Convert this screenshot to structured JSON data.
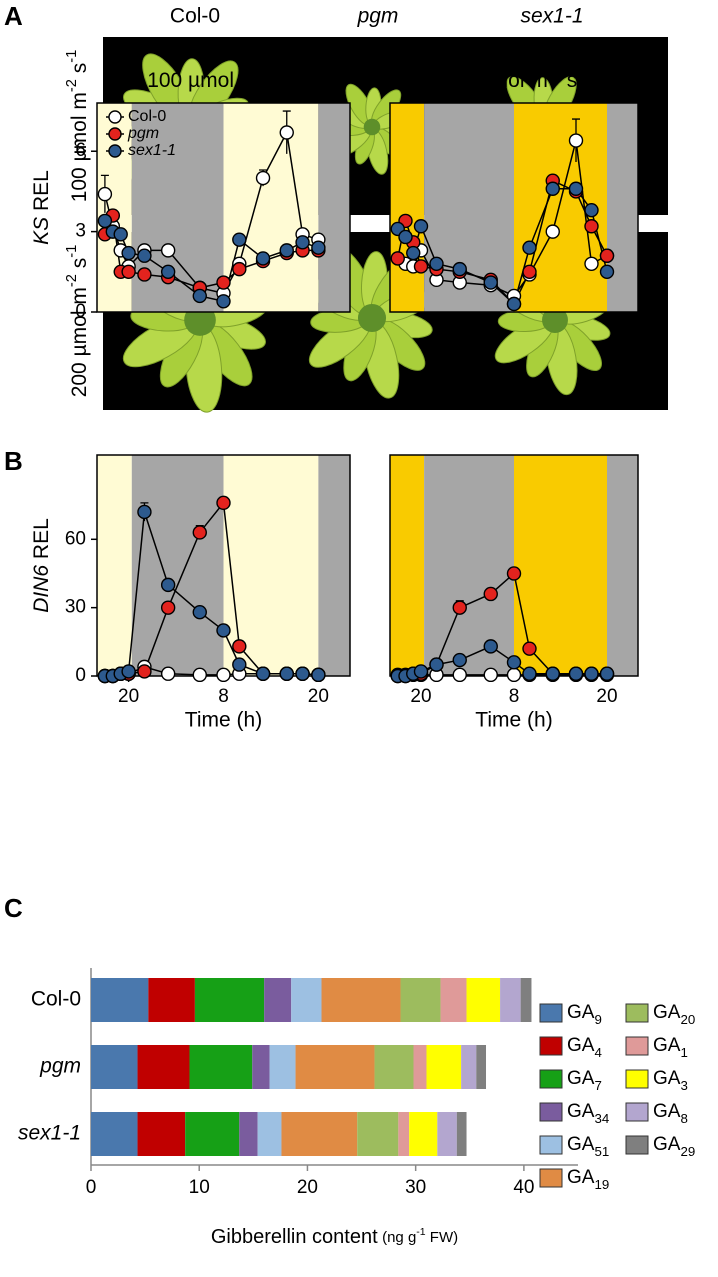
{
  "panel_labels": [
    "A",
    "B",
    "C"
  ],
  "panel_a": {
    "columns": [
      "Col-0",
      "pgm",
      "sex1-1"
    ],
    "rows": [
      "100 µmol m-2 s-1",
      "200 µmol m-2 s-1"
    ]
  },
  "chart_data": [
    {
      "type": "line",
      "title": "100 µmol m-2 s-1",
      "ylabel": "KS REL",
      "x": [
        17,
        18,
        19,
        20,
        22,
        25,
        29,
        32,
        34,
        37,
        40,
        42,
        44
      ],
      "xlim": [
        16,
        48
      ],
      "ylim": [
        0,
        7.8
      ],
      "yticks": [
        0,
        3,
        6
      ],
      "periods": [
        {
          "start": 16,
          "end": 20.4,
          "color": "#fffbd4"
        },
        {
          "start": 20.4,
          "end": 32,
          "color": "#a6a6a6"
        },
        {
          "start": 32,
          "end": 44,
          "color": "#fffbd4"
        },
        {
          "start": 44,
          "end": 48,
          "color": "#a6a6a6"
        }
      ],
      "legend": "upper left",
      "series": [
        {
          "name": "Col-0",
          "color": "#ffffff",
          "values": [
            4.4,
            3.2,
            2.3,
            1.7,
            2.3,
            2.3,
            0.9,
            0.7,
            1.8,
            5.0,
            6.7,
            2.9,
            2.7
          ],
          "errors": [
            0.7,
            null,
            null,
            null,
            null,
            null,
            null,
            null,
            null,
            0.3,
            0.8,
            null,
            null
          ]
        },
        {
          "name": "pgm",
          "color": "#e3231e",
          "values": [
            2.9,
            3.6,
            1.5,
            1.5,
            1.4,
            1.3,
            0.9,
            1.1,
            1.6,
            1.9,
            2.2,
            2.3,
            2.3
          ]
        },
        {
          "name": "sex1-1",
          "color": "#2d5a8e",
          "values": [
            3.4,
            3.0,
            2.9,
            2.2,
            2.1,
            1.5,
            0.6,
            0.4,
            2.7,
            2.0,
            2.3,
            2.6,
            2.4
          ]
        }
      ]
    },
    {
      "type": "line",
      "title": "200 µmol m-2 s-1",
      "x": [
        17,
        18,
        19,
        20,
        22,
        25,
        29,
        32,
        34,
        37,
        40,
        42,
        44
      ],
      "xlim": [
        16,
        48
      ],
      "ylim": [
        0,
        7.8
      ],
      "periods": [
        {
          "start": 16,
          "end": 20.4,
          "color": "#f9cb00"
        },
        {
          "start": 20.4,
          "end": 32,
          "color": "#a6a6a6"
        },
        {
          "start": 32,
          "end": 44,
          "color": "#f9cb00"
        },
        {
          "start": 44,
          "end": 48,
          "color": "#a6a6a6"
        }
      ],
      "series": [
        {
          "color": "#ffffff",
          "values": [
            2.0,
            1.8,
            1.7,
            2.3,
            1.2,
            1.1,
            1.0,
            0.6,
            1.4,
            3.0,
            6.4,
            1.8,
            2.1
          ],
          "errors": [
            null,
            null,
            null,
            null,
            null,
            null,
            null,
            null,
            null,
            null,
            0.8,
            null,
            null
          ]
        },
        {
          "color": "#e3231e",
          "values": [
            2.0,
            3.4,
            2.6,
            1.7,
            1.6,
            1.5,
            1.2,
            0.3,
            1.5,
            4.9,
            4.5,
            3.2,
            2.1
          ]
        },
        {
          "color": "#2d5a8e",
          "values": [
            3.1,
            2.8,
            2.2,
            3.2,
            1.8,
            1.6,
            1.1,
            0.3,
            2.4,
            4.6,
            4.6,
            3.8,
            1.5
          ]
        }
      ]
    },
    {
      "type": "line",
      "ylabel": "DIN6 REL",
      "x": [
        17,
        18,
        19,
        20,
        22,
        25,
        29,
        32,
        34,
        37,
        40,
        42,
        44
      ],
      "xlim": [
        16,
        48
      ],
      "ylim": [
        0,
        97
      ],
      "yticks": [
        0,
        30,
        60
      ],
      "xticks": [
        20,
        {
          "value": 32,
          "label": "8"
        },
        {
          "value": 44,
          "label": "20"
        }
      ],
      "xlabel": "Time (h)",
      "periods": [
        {
          "start": 16,
          "end": 20.4,
          "color": "#fffbd4"
        },
        {
          "start": 20.4,
          "end": 32,
          "color": "#a6a6a6"
        },
        {
          "start": 32,
          "end": 44,
          "color": "#fffbd4"
        },
        {
          "start": 44,
          "end": 48,
          "color": "#a6a6a6"
        }
      ],
      "series": [
        {
          "color": "#ffffff",
          "values": [
            0,
            0,
            1,
            1,
            4,
            1,
            0.5,
            0.5,
            1,
            1,
            1,
            1,
            0.5
          ]
        },
        {
          "color": "#e3231e",
          "values": [
            0,
            0,
            1,
            1,
            2,
            30,
            63,
            76,
            13,
            1,
            1,
            1,
            0.5
          ],
          "errors": [
            null,
            null,
            null,
            null,
            null,
            null,
            3,
            2,
            null,
            null,
            null,
            null,
            null
          ]
        },
        {
          "color": "#2d5a8e",
          "values": [
            0,
            0,
            1,
            2,
            72,
            40,
            28,
            20,
            5,
            1,
            1,
            1,
            0.5
          ],
          "errors": [
            null,
            null,
            null,
            null,
            4,
            null,
            null,
            null,
            null,
            null,
            null,
            null,
            null
          ]
        }
      ]
    },
    {
      "type": "line",
      "x": [
        17,
        18,
        19,
        20,
        22,
        25,
        29,
        32,
        34,
        37,
        40,
        42,
        44
      ],
      "xlim": [
        16,
        48
      ],
      "ylim": [
        0,
        97
      ],
      "xticks": [
        20,
        {
          "value": 32,
          "label": "8"
        },
        {
          "value": 44,
          "label": "20"
        }
      ],
      "xlabel": "Time (h)",
      "periods": [
        {
          "start": 16,
          "end": 20.4,
          "color": "#f9cb00"
        },
        {
          "start": 20.4,
          "end": 32,
          "color": "#a6a6a6"
        },
        {
          "start": 32,
          "end": 44,
          "color": "#f9cb00"
        },
        {
          "start": 44,
          "end": 48,
          "color": "#a6a6a6"
        }
      ],
      "series": [
        {
          "color": "#ffffff",
          "values": [
            0.5,
            0.5,
            0.5,
            0.5,
            0.5,
            0.5,
            0.5,
            0.5,
            0.5,
            0.5,
            0.5,
            0.5,
            0.5
          ]
        },
        {
          "color": "#e3231e",
          "values": [
            0,
            0,
            1,
            1,
            5,
            30,
            36,
            45,
            12,
            1,
            1,
            1,
            1
          ],
          "errors": [
            null,
            null,
            null,
            null,
            null,
            3,
            null,
            null,
            null,
            null,
            null,
            null,
            null
          ]
        },
        {
          "color": "#2d5a8e",
          "values": [
            0,
            0,
            1,
            2,
            5,
            7,
            13,
            6,
            1,
            1,
            1,
            1,
            1
          ]
        }
      ]
    },
    {
      "type": "bar",
      "orientation": "horizontal",
      "stacked": true,
      "categories": [
        "Col-0",
        "pgm",
        "sex1-1"
      ],
      "xlabel": "Gibberellin content",
      "xlabel_unit": "(ng g-1 FW)",
      "xlim": [
        0,
        45
      ],
      "xticks": [
        0,
        10,
        20,
        30,
        40
      ],
      "legend": "right",
      "series": [
        {
          "name": "GA9",
          "color": "#4a78ad",
          "values": [
            5.3,
            4.3,
            4.3
          ]
        },
        {
          "name": "GA4",
          "color": "#c00000",
          "values": [
            4.3,
            4.8,
            4.4
          ]
        },
        {
          "name": "GA7",
          "color": "#16a016",
          "values": [
            6.4,
            5.8,
            5.0
          ]
        },
        {
          "name": "GA34",
          "color": "#7a5c9e",
          "values": [
            2.5,
            1.6,
            1.7
          ]
        },
        {
          "name": "GA51",
          "color": "#9dc0e2",
          "values": [
            2.8,
            2.4,
            2.2
          ]
        },
        {
          "name": "GA19",
          "color": "#e08b44",
          "values": [
            7.3,
            7.3,
            7.0
          ]
        },
        {
          "name": "GA20",
          "color": "#9dbc5e",
          "values": [
            3.7,
            3.6,
            3.8
          ]
        },
        {
          "name": "GA1",
          "color": "#df9a99",
          "values": [
            2.4,
            1.2,
            1.0
          ]
        },
        {
          "name": "GA3",
          "color": "#ffff00",
          "values": [
            3.1,
            3.2,
            2.6
          ]
        },
        {
          "name": "GA8",
          "color": "#b3a6cf",
          "values": [
            1.9,
            1.4,
            1.8
          ]
        },
        {
          "name": "GA29",
          "color": "#7f7f7f",
          "values": [
            1.0,
            0.9,
            0.9
          ]
        }
      ]
    }
  ]
}
